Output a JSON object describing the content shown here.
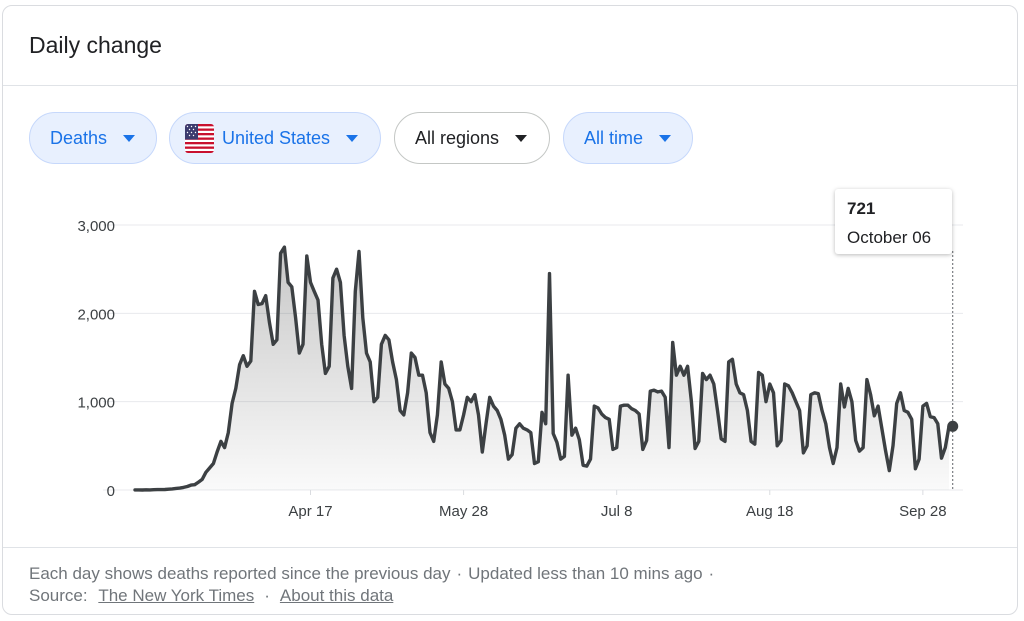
{
  "card": {
    "title": "Daily change"
  },
  "filters": {
    "metric": "Deaths",
    "country": "United States",
    "regions": "All regions",
    "time": "All time"
  },
  "tooltip": {
    "value": "721",
    "date": "October 06"
  },
  "footer": {
    "note": "Each day shows deaths reported since the previous day",
    "updated": "Updated less than 10 mins ago",
    "dot": "·",
    "source_label": "Source:",
    "source_link": "The New York Times",
    "about_link": "About this data"
  },
  "colors": {
    "line": "#3c4043",
    "accent": "#1a73e8",
    "chip_bg": "#e8f0fe",
    "grid": "#e8eaed"
  },
  "chart_data": {
    "type": "area",
    "title": "",
    "xlabel": "",
    "ylabel": "",
    "ylim": [
      0,
      3000
    ],
    "yticks": [
      0,
      1000,
      2000,
      3000
    ],
    "ytick_labels": [
      "0",
      "1,000",
      "2,000",
      "3,000"
    ],
    "xticks": [
      {
        "day": 47,
        "label": "Apr 17"
      },
      {
        "day": 88,
        "label": "May 28"
      },
      {
        "day": 129,
        "label": "Jul 8"
      },
      {
        "day": 170,
        "label": "Aug 18"
      },
      {
        "day": 211,
        "label": "Sep 28"
      }
    ],
    "x_start": "2020-03-01",
    "grid": true,
    "marker": {
      "day": 219,
      "value": 721,
      "date": "October 06"
    },
    "series": [
      {
        "values": [
          1,
          1,
          0,
          2,
          1,
          3,
          4,
          5,
          6,
          9,
          12,
          18,
          22,
          30,
          40,
          55,
          60,
          90,
          120,
          200,
          250,
          300,
          430,
          550,
          480,
          650,
          980,
          1150,
          1420,
          1520,
          1400,
          1460,
          2250,
          2100,
          2110,
          2200,
          1900,
          1650,
          1700,
          2680,
          2750,
          2350,
          2300,
          1950,
          1550,
          1650,
          2650,
          2350,
          2250,
          2150,
          1650,
          1320,
          1400,
          2400,
          2500,
          2350,
          1750,
          1400,
          1150,
          2250,
          2700,
          1950,
          1550,
          1450,
          1000,
          1050,
          1650,
          1750,
          1700,
          1450,
          1250,
          900,
          850,
          1100,
          1550,
          1500,
          1300,
          1300,
          1100,
          650,
          550,
          850,
          1450,
          1200,
          1150,
          1000,
          680,
          680,
          850,
          1050,
          1000,
          1080,
          850,
          430,
          750,
          1050,
          950,
          900,
          800,
          620,
          350,
          400,
          700,
          750,
          700,
          680,
          650,
          300,
          320,
          880,
          750,
          2450,
          640,
          540,
          350,
          380,
          1300,
          620,
          700,
          570,
          280,
          270,
          350,
          950,
          930,
          860,
          820,
          800,
          460,
          480,
          950,
          960,
          960,
          920,
          900,
          860,
          460,
          560,
          1120,
          1130,
          1110,
          1120,
          1050,
          480,
          1670,
          1300,
          1400,
          1300,
          1400,
          1000,
          470,
          550,
          1320,
          1250,
          1300,
          1200,
          900,
          580,
          550,
          1450,
          1480,
          1200,
          1100,
          1080,
          900,
          550,
          520,
          1330,
          1300,
          1000,
          1200,
          1100,
          500,
          560,
          1200,
          1180,
          1100,
          1000,
          900,
          420,
          500,
          1080,
          1100,
          1090,
          900,
          750,
          480,
          300,
          480,
          1200,
          940,
          1150,
          1000,
          560,
          440,
          480,
          1250,
          1080,
          840,
          950,
          700,
          450,
          220,
          500,
          980,
          1100,
          900,
          880,
          800,
          240,
          350,
          950,
          980,
          830,
          820,
          750,
          360,
          480,
          721
        ]
      }
    ]
  }
}
